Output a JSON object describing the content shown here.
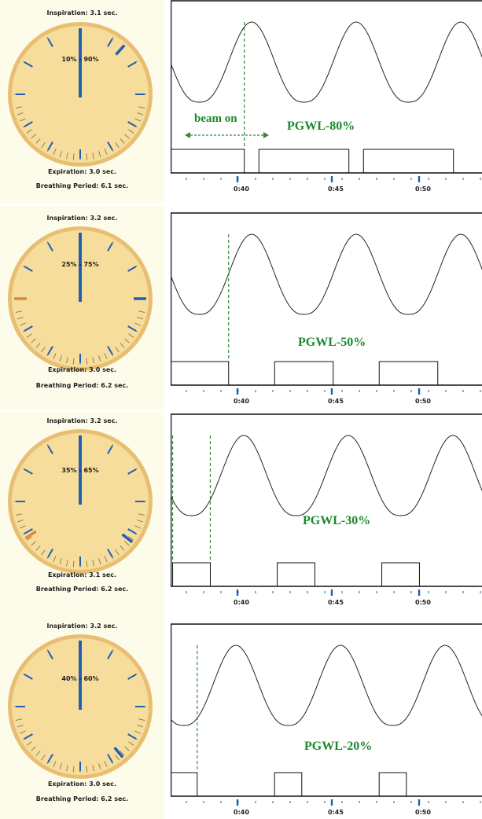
{
  "colors": {
    "dial_fill": "#f7dd9c",
    "dial_rim": "#e8bf72",
    "hand": "#1f5fb4",
    "gating_window": "#2e8b34",
    "beam_label": "#1a8a2a",
    "waveform": "#222222"
  },
  "beam_on_label": "beam on",
  "time_ticks": [
    "0:40",
    "0:45",
    "0:50"
  ],
  "panels": [
    {
      "inspiration": "Inspiration: 3.1 sec.",
      "window": "10% - 90%",
      "expiration": "Expiration: 3.0 sec.",
      "period": "Breathing Period: 6.1 sec.",
      "pgwl": "PGWL-80%",
      "window_fraction": 0.8
    },
    {
      "inspiration": "Inspiration: 3.2 sec.",
      "window": "25% - 75%",
      "expiration": "Expiration: 3.0 sec.",
      "period": "Breathing Period: 6.2 sec.",
      "pgwl": "PGWL-50%",
      "window_fraction": 0.5
    },
    {
      "inspiration": "Inspiration: 3.2 sec.",
      "window": "35% - 65%",
      "expiration": "Expiration: 3.1 sec.",
      "period": "Breathing Period: 6.2 sec.",
      "pgwl": "PGWL-30%",
      "window_fraction": 0.3
    },
    {
      "inspiration": "Inspiration: 3.2 sec.",
      "window": "40% - 60%",
      "expiration": "Expiration: 3.0 sec.",
      "period": "Breathing Period: 6.2 sec.",
      "pgwl": "PGWL-20%",
      "window_fraction": 0.2
    }
  ]
}
